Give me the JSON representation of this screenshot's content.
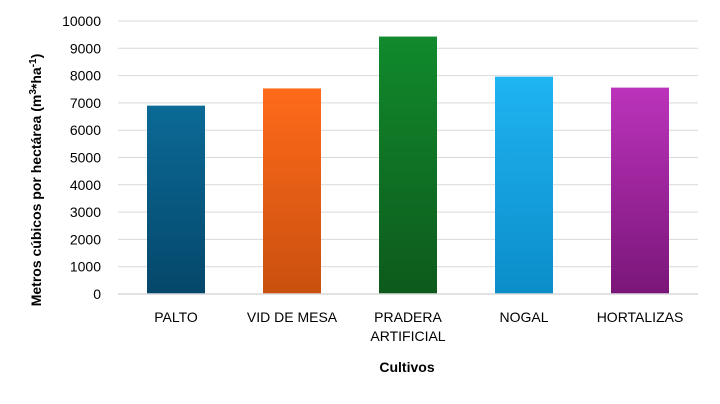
{
  "chart_data": {
    "type": "bar",
    "categories": [
      [
        "PALTO"
      ],
      [
        "VID DE MESA"
      ],
      [
        "PRADERA",
        "ARTIFICIAL"
      ],
      [
        "NOGAL"
      ],
      [
        "HORTALIZAS"
      ]
    ],
    "values": [
      6900,
      7530,
      9430,
      7960,
      7560
    ],
    "colors": [
      [
        "#0b6a96",
        "#05476b"
      ],
      [
        "#ff6a1a",
        "#c9500f"
      ],
      [
        "#118a2c",
        "#0d5a1c"
      ],
      [
        "#1fb4f2",
        "#0b8dc9"
      ],
      [
        "#bb33bb",
        "#7a1679"
      ]
    ],
    "xlabel": "Cultivos",
    "ylabel": {
      "base": "Metros cúbicos por hectárea (m",
      "sup1": "3",
      "mid": "*ha",
      "sup2": "-1",
      "end": ")"
    },
    "ylim": [
      0,
      10000
    ],
    "yticks": [
      0,
      1000,
      2000,
      3000,
      4000,
      5000,
      6000,
      7000,
      8000,
      9000,
      10000
    ],
    "grid": true,
    "legend": "none"
  }
}
